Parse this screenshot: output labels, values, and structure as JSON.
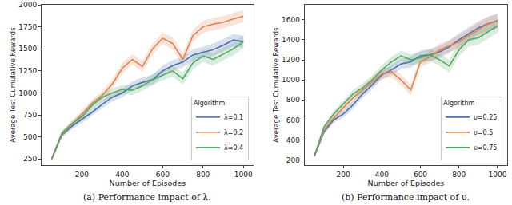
{
  "chart_data": [
    {
      "type": "line",
      "title": "(a) Performance impact of λ.",
      "x_label": "Number of Episodes",
      "y_label": "Average Test Cumulative Rewards",
      "legend_title": "Algorithm",
      "legend": "lower right",
      "grid": false,
      "x": [
        50,
        100,
        150,
        200,
        250,
        300,
        350,
        400,
        450,
        500,
        550,
        600,
        650,
        700,
        750,
        800,
        850,
        900,
        950,
        1000
      ],
      "xlim": [
        0,
        1050
      ],
      "xticks": [
        200,
        400,
        600,
        800,
        1000
      ],
      "ylim": [
        180,
        2000
      ],
      "yticks": [
        250,
        500,
        750,
        1000,
        1250,
        1500,
        1750,
        2000
      ],
      "series": [
        {
          "name": "λ=0.1",
          "color": "#4c72b0",
          "values": [
            250,
            520,
            620,
            700,
            780,
            870,
            950,
            1000,
            1080,
            1120,
            1150,
            1250,
            1310,
            1350,
            1430,
            1460,
            1490,
            1540,
            1600,
            1580
          ],
          "error": [
            20,
            30,
            35,
            40,
            40,
            45,
            45,
            50,
            50,
            55,
            55,
            60,
            60,
            60,
            65,
            65,
            70,
            70,
            70,
            70
          ]
        },
        {
          "name": "λ=0.2",
          "color": "#dd8452",
          "values": [
            250,
            530,
            640,
            760,
            880,
            970,
            1100,
            1280,
            1380,
            1300,
            1500,
            1620,
            1560,
            1380,
            1650,
            1750,
            1780,
            1800,
            1840,
            1870
          ],
          "error": [
            20,
            30,
            35,
            40,
            45,
            50,
            55,
            60,
            60,
            60,
            65,
            65,
            70,
            70,
            70,
            70,
            70,
            70,
            70,
            70
          ]
        },
        {
          "name": "λ=0.4",
          "color": "#55a868",
          "values": [
            250,
            540,
            650,
            730,
            860,
            950,
            1000,
            1040,
            1030,
            1080,
            1150,
            1200,
            1250,
            1160,
            1340,
            1420,
            1380,
            1440,
            1500,
            1580
          ],
          "error": [
            20,
            30,
            35,
            40,
            45,
            45,
            50,
            50,
            55,
            55,
            60,
            60,
            65,
            65,
            70,
            70,
            70,
            75,
            75,
            75
          ]
        }
      ]
    },
    {
      "type": "line",
      "title": "(b) Performance impact of υ.",
      "x_label": "Number of Episodes",
      "y_label": "Average Test Cumulative Rewards",
      "legend_title": "Algorithm",
      "legend": "lower right",
      "grid": false,
      "x": [
        50,
        100,
        150,
        200,
        250,
        300,
        350,
        400,
        450,
        500,
        550,
        600,
        650,
        700,
        750,
        800,
        850,
        900,
        950,
        1000
      ],
      "xlim": [
        0,
        1050
      ],
      "xticks": [
        200,
        400,
        600,
        800,
        1000
      ],
      "ylim": [
        150,
        1750
      ],
      "yticks": [
        200,
        400,
        600,
        800,
        1000,
        1200,
        1400,
        1600
      ],
      "series": [
        {
          "name": "υ=0.25",
          "color": "#4c72b0",
          "values": [
            240,
            480,
            600,
            660,
            750,
            860,
            950,
            1050,
            1100,
            1160,
            1180,
            1240,
            1250,
            1280,
            1330,
            1400,
            1460,
            1520,
            1560,
            1590
          ],
          "error": [
            20,
            25,
            30,
            35,
            40,
            40,
            45,
            45,
            50,
            50,
            55,
            55,
            60,
            60,
            60,
            65,
            65,
            65,
            70,
            70
          ]
        },
        {
          "name": "υ=0.5",
          "color": "#dd8452",
          "values": [
            240,
            500,
            620,
            720,
            820,
            900,
            980,
            1060,
            1080,
            1000,
            900,
            1180,
            1230,
            1300,
            1340,
            1380,
            1440,
            1500,
            1560,
            1590
          ],
          "error": [
            20,
            25,
            30,
            35,
            40,
            45,
            45,
            50,
            50,
            55,
            55,
            55,
            60,
            60,
            60,
            65,
            65,
            65,
            70,
            70
          ]
        },
        {
          "name": "υ=0.75",
          "color": "#55a868",
          "values": [
            240,
            530,
            660,
            760,
            860,
            920,
            1000,
            1100,
            1180,
            1240,
            1200,
            1220,
            1250,
            1200,
            1140,
            1300,
            1400,
            1420,
            1480,
            1540
          ],
          "error": [
            20,
            25,
            30,
            35,
            40,
            45,
            45,
            50,
            50,
            55,
            55,
            60,
            60,
            60,
            65,
            65,
            65,
            70,
            70,
            70
          ]
        }
      ]
    }
  ]
}
